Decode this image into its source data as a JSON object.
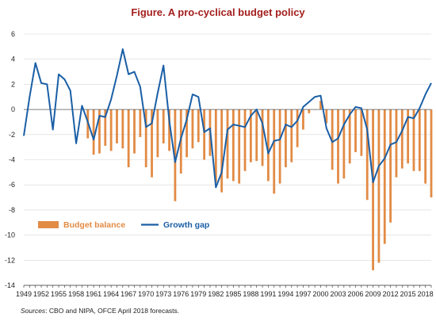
{
  "title": "Figure. A pro-cyclical budget policy",
  "source": {
    "label": "Sources",
    "text": ": CBO and NIPA, OFCE April 2018 forecasts."
  },
  "colors": {
    "bar": "#e28b45",
    "line": "#1a5fa6",
    "title": "#a3201e",
    "grid": "#d6d6d6"
  },
  "chart_data": {
    "type": "bar",
    "title": "Figure. A pro-cyclical budget policy",
    "xlabel": "",
    "ylabel": "",
    "ylim": [
      -14,
      6
    ],
    "yticks": [
      6,
      4,
      2,
      0,
      -2,
      -4,
      -6,
      -8,
      -10,
      -12,
      -14
    ],
    "xlim": [
      1949,
      2019
    ],
    "xticks": [
      1949,
      1952,
      1955,
      1958,
      1961,
      1964,
      1967,
      1970,
      1973,
      1976,
      1979,
      1982,
      1985,
      1988,
      1991,
      1994,
      1997,
      2000,
      2003,
      2006,
      2009,
      2012,
      2015,
      2018
    ],
    "grid": "horizontal",
    "legend": {
      "placement": "bottom-left"
    },
    "series": [
      {
        "name": "Budget balance",
        "type": "bar",
        "x": [
          1960,
          1961,
          1962,
          1963,
          1964,
          1965,
          1966,
          1967,
          1968,
          1969,
          1970,
          1971,
          1972,
          1973,
          1974,
          1975,
          1976,
          1977,
          1978,
          1979,
          1980,
          1981,
          1982,
          1983,
          1984,
          1985,
          1986,
          1987,
          1988,
          1989,
          1990,
          1991,
          1992,
          1993,
          1994,
          1995,
          1996,
          1997,
          1998,
          1999,
          2000,
          2001,
          2002,
          2003,
          2004,
          2005,
          2006,
          2007,
          2008,
          2009,
          2010,
          2011,
          2012,
          2013,
          2014,
          2015,
          2016,
          2017,
          2018,
          2019
        ],
        "values": [
          -2.3,
          -3.6,
          -3.5,
          -2.9,
          -3.3,
          -2.7,
          -3.1,
          -4.6,
          -3.5,
          -2.2,
          -4.6,
          -5.4,
          -3.8,
          -2.7,
          -3.3,
          -7.3,
          -5.1,
          -3.8,
          -3.1,
          -2.6,
          -4.0,
          -3.7,
          -5.8,
          -6.6,
          -5.5,
          -5.7,
          -5.9,
          -4.9,
          -4.2,
          -4.1,
          -4.5,
          -5.7,
          -6.7,
          -5.9,
          -4.6,
          -4.2,
          -3.0,
          -1.6,
          -0.3,
          0.0,
          0.7,
          -1.1,
          -4.8,
          -5.9,
          -5.5,
          -4.3,
          -3.4,
          -3.7,
          -7.2,
          -12.8,
          -12.2,
          -10.7,
          -9.0,
          -5.4,
          -4.7,
          -4.3,
          -4.9,
          -4.9,
          -5.9,
          -7.0
        ]
      },
      {
        "name": "Growth gap",
        "type": "line",
        "x": [
          1949,
          1950,
          1951,
          1952,
          1953,
          1954,
          1955,
          1956,
          1957,
          1958,
          1959,
          1960,
          1961,
          1962,
          1963,
          1964,
          1965,
          1966,
          1967,
          1968,
          1969,
          1970,
          1971,
          1972,
          1973,
          1974,
          1975,
          1976,
          1977,
          1978,
          1979,
          1980,
          1981,
          1982,
          1983,
          1984,
          1985,
          1986,
          1987,
          1988,
          1989,
          1990,
          1991,
          1992,
          1993,
          1994,
          1995,
          1996,
          1997,
          1998,
          1999,
          2000,
          2001,
          2002,
          2003,
          2004,
          2005,
          2006,
          2007,
          2008,
          2009,
          2010,
          2011,
          2012,
          2013,
          2014,
          2015,
          2016,
          2017,
          2018,
          2019
        ],
        "values": [
          -2.1,
          1.0,
          3.7,
          2.1,
          2.0,
          -1.6,
          2.8,
          2.4,
          1.5,
          -2.7,
          0.3,
          -1.0,
          -2.4,
          -0.5,
          -0.6,
          0.8,
          2.7,
          4.8,
          2.8,
          3.0,
          1.8,
          -1.4,
          -1.1,
          1.3,
          3.5,
          -0.9,
          -4.2,
          -2.3,
          -0.8,
          1.2,
          1.0,
          -1.8,
          -1.5,
          -6.2,
          -5.0,
          -1.6,
          -1.2,
          -1.3,
          -1.4,
          -0.5,
          0.0,
          -1.1,
          -3.5,
          -2.5,
          -2.4,
          -1.2,
          -1.4,
          -0.9,
          0.2,
          0.6,
          1.0,
          1.1,
          -1.5,
          -2.6,
          -2.3,
          -1.2,
          -0.4,
          0.2,
          0.1,
          -1.6,
          -5.8,
          -4.5,
          -3.9,
          -2.8,
          -2.6,
          -1.7,
          -0.6,
          -0.7,
          0.1,
          1.2,
          2.1
        ]
      }
    ]
  }
}
